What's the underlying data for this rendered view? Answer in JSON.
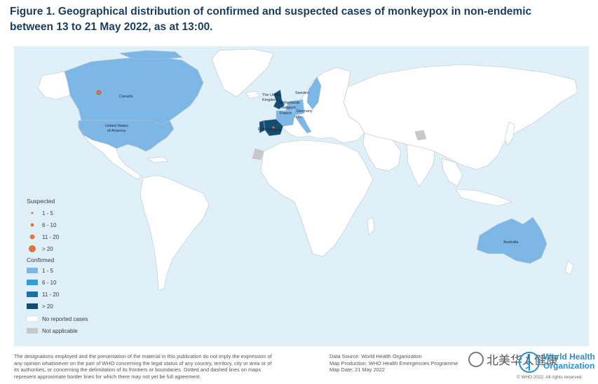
{
  "figure": {
    "title": "Figure 1. Geographical distribution of confirmed and suspected cases of monkeypox in non-endemic between 13 to 21 May 2022, as at 13:00."
  },
  "map": {
    "colors": {
      "ocean": "#dff0f8",
      "land": "#ffffff",
      "border": "#b9c3c9",
      "confirmed_1_5": "#7db7e6",
      "confirmed_6_10": "#2b9de0",
      "confirmed_11_20": "#1d6fa8",
      "confirmed_gt_20": "#124d73",
      "not_applicable": "#c8c8c8",
      "suspected": "#e8703a"
    },
    "country_labels": [
      {
        "key": "canada",
        "text": "Canada"
      },
      {
        "key": "usa1",
        "text": "United States"
      },
      {
        "key": "usa2",
        "text": "of America"
      },
      {
        "key": "uk1",
        "text": "The United"
      },
      {
        "key": "uk2",
        "text": "Kingdom"
      },
      {
        "key": "sweden",
        "text": "Sweden"
      },
      {
        "key": "netherlands",
        "text": "Netherlands"
      },
      {
        "key": "belgium",
        "text": "Belgium"
      },
      {
        "key": "france",
        "text": "France"
      },
      {
        "key": "germany",
        "text": "Germany"
      },
      {
        "key": "italy",
        "text": "Italy"
      },
      {
        "key": "portugal",
        "text": "Portugal"
      },
      {
        "key": "spain",
        "text": "Spain"
      },
      {
        "key": "australia",
        "text": "Australia"
      }
    ],
    "confirmed_countries": [
      {
        "name": "Canada",
        "category": "1 - 5"
      },
      {
        "name": "United States of America",
        "category": "1 - 5"
      },
      {
        "name": "Australia",
        "category": "1 - 5"
      },
      {
        "name": "Sweden",
        "category": "1 - 5"
      },
      {
        "name": "Netherlands",
        "category": "1 - 5"
      },
      {
        "name": "Belgium",
        "category": "1 - 5"
      },
      {
        "name": "France",
        "category": "1 - 5"
      },
      {
        "name": "Germany",
        "category": "1 - 5"
      },
      {
        "name": "Italy",
        "category": "1 - 5"
      },
      {
        "name": "The United Kingdom",
        "category": "> 20"
      },
      {
        "name": "Portugal",
        "category": "> 20"
      },
      {
        "name": "Spain",
        "category": "> 20"
      }
    ],
    "suspected_markers": [
      {
        "location": "Canada",
        "category": "6 - 10"
      },
      {
        "location": "Spain",
        "category": "1 - 5"
      }
    ],
    "not_applicable_regions": [
      "Western Sahara",
      "Kashmir"
    ]
  },
  "legend": {
    "suspected_title": "Suspected",
    "suspected_items": [
      "1 - 5",
      "6 - 10",
      "11 - 20",
      "> 20"
    ],
    "confirmed_title": "Confirmed",
    "confirmed_items": [
      "1 - 5",
      "6 - 10",
      "11 - 20",
      "> 20"
    ],
    "no_reported": "No reported cases",
    "not_applicable": "Not applicable"
  },
  "footer": {
    "disclaimer_lines": [
      "The designations employed and the presentation of the material in this publication do not imply the expression of",
      "any opinion whatsoever on the part of WHO concerning the legal status of any country, territory, city or area or of",
      "its authorities, or concerning the delimitation of its frontiers or boundaries. Dotted and dashed lines on maps",
      "represent approximate border lines for which there may not yet be full agreement."
    ],
    "data_source": "Data Source: World Health Organization",
    "map_production": "Map Production: WHO Health Emergencies Programme",
    "map_date": "Map Date: 21 May 2022",
    "who_line1": "World Health",
    "who_line2": "Organization",
    "copyright": "© WHO 2022. All rights reserved.",
    "watermark": "北美华人健康"
  }
}
